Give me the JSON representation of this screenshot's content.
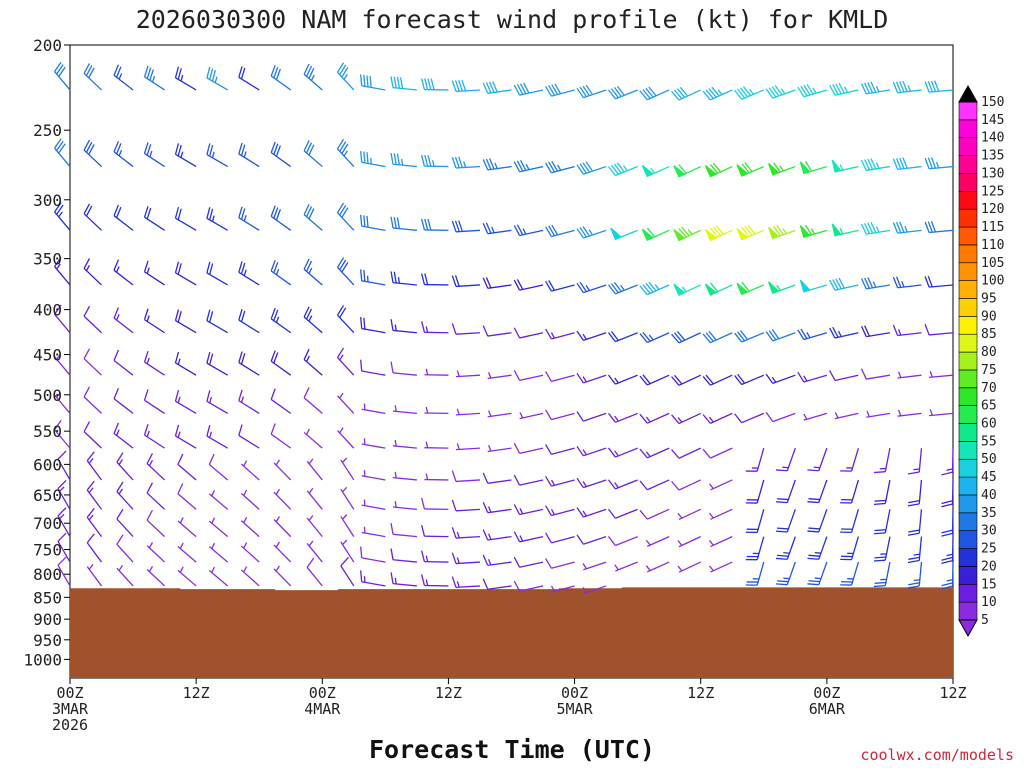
{
  "chart_data": {
    "type": "wind-barb time-height profile",
    "title": "2026030300 NAM forecast wind profile (kt) for KMLD",
    "xlabel": "Forecast Time (UTC)",
    "ylabel": "",
    "units": "kt",
    "y_ticks": [
      200,
      250,
      300,
      350,
      400,
      450,
      500,
      550,
      600,
      650,
      700,
      750,
      800,
      850,
      900,
      950,
      1000
    ],
    "y_range_hpa": [
      200,
      1050
    ],
    "x_range_hours": [
      0,
      84
    ],
    "x_ticks": [
      {
        "hour": 0,
        "lines": [
          "00Z",
          "3MAR",
          "2026"
        ]
      },
      {
        "hour": 12,
        "lines": [
          "12Z"
        ]
      },
      {
        "hour": 24,
        "lines": [
          "00Z",
          "4MAR"
        ]
      },
      {
        "hour": 36,
        "lines": [
          "12Z"
        ]
      },
      {
        "hour": 48,
        "lines": [
          "00Z",
          "5MAR"
        ]
      },
      {
        "hour": 60,
        "lines": [
          "12Z"
        ]
      },
      {
        "hour": 72,
        "lines": [
          "00Z",
          "6MAR"
        ]
      },
      {
        "hour": 84,
        "lines": [
          "12Z"
        ]
      }
    ],
    "times_hours": [
      0,
      3,
      6,
      9,
      12,
      15,
      18,
      21,
      24,
      27,
      30,
      33,
      36,
      39,
      42,
      45,
      48,
      51,
      54,
      57,
      60,
      63,
      66,
      69,
      72,
      75,
      78,
      81,
      84
    ],
    "levels_hpa": [
      225,
      275,
      325,
      375,
      425,
      475,
      525,
      575,
      625,
      675,
      725,
      775,
      825
    ],
    "surface_pressure_hpa": [
      830,
      830,
      830,
      830,
      832,
      832,
      832,
      834,
      834,
      832,
      832,
      832,
      832,
      832,
      832,
      832,
      830,
      830,
      828,
      828,
      828,
      828,
      828,
      828,
      828,
      828,
      828,
      828,
      828
    ],
    "colorbar": {
      "levels": [
        5,
        10,
        15,
        20,
        25,
        30,
        35,
        40,
        45,
        50,
        55,
        60,
        65,
        70,
        75,
        80,
        85,
        90,
        95,
        100,
        105,
        110,
        115,
        120,
        125,
        130,
        135,
        140,
        145,
        150
      ],
      "colors": [
        "#8a2be2",
        "#6a1fe0",
        "#3a1fd8",
        "#2231d8",
        "#1f55e0",
        "#1e78e6",
        "#1e99ea",
        "#1cb4ee",
        "#17d0e0",
        "#14e6b8",
        "#10e88a",
        "#22ec4e",
        "#2ee62a",
        "#60ec22",
        "#a6f01e",
        "#e0f518",
        "#fff200",
        "#ffd000",
        "#ffb000",
        "#ff9400",
        "#ff7a00",
        "#ff5a00",
        "#ff3000",
        "#ff0a14",
        "#ff0060",
        "#ff0090",
        "#ff00c0",
        "#ff00dd",
        "#ff33ff",
        "#ff66ff"
      ]
    },
    "terrain_color": "#a0522d"
  },
  "credit": "coolwx.com/models"
}
